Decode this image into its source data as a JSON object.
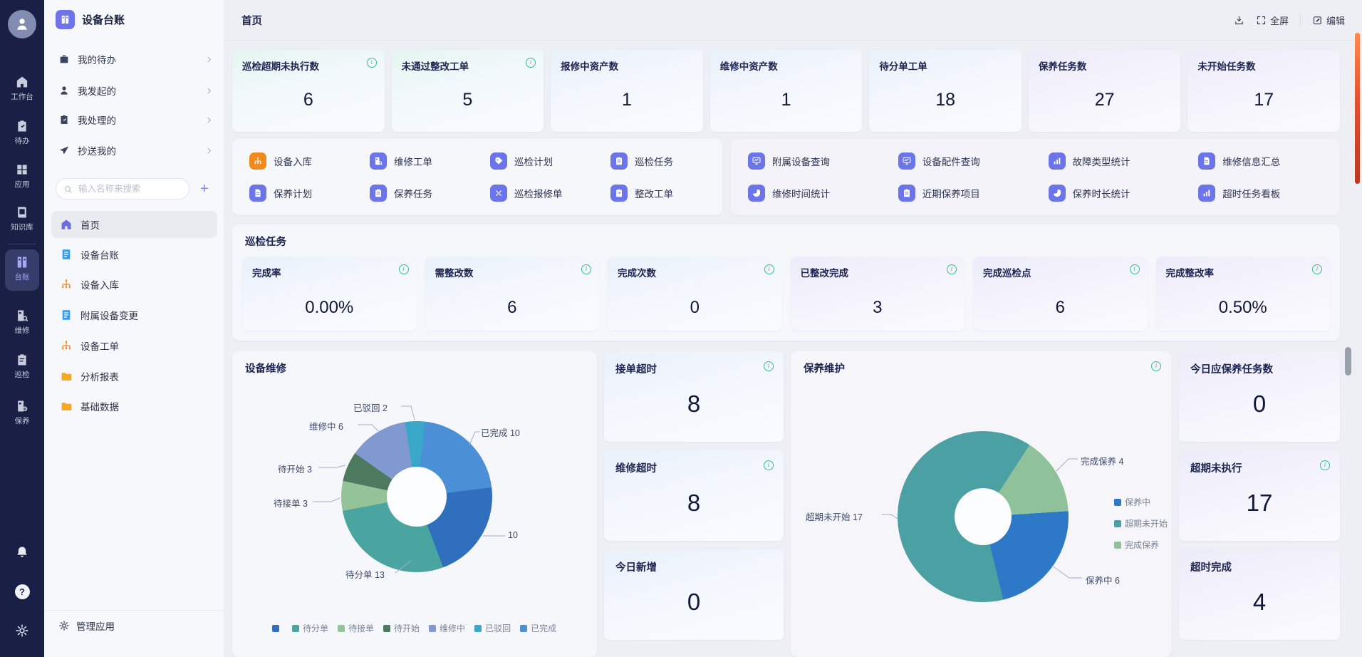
{
  "rail": {
    "items": [
      {
        "label": "工作台",
        "icon": "home-icon"
      },
      {
        "label": "待办",
        "icon": "todo-clipboard-icon"
      },
      {
        "label": "应用",
        "icon": "apps-grid-icon"
      },
      {
        "label": "知识库",
        "icon": "knowledge-book-icon"
      },
      {
        "label": "台账",
        "icon": "ledger-cabinet-icon"
      },
      {
        "label": "维修",
        "icon": "repair-cabinet-icon"
      },
      {
        "label": "巡检",
        "icon": "patrol-clipboard-icon"
      },
      {
        "label": "保养",
        "icon": "maintain-cabinet-icon"
      }
    ]
  },
  "sidebar": {
    "app_title": "设备台账",
    "quick_links": [
      {
        "label": "我的待办",
        "icon": "briefcase-icon"
      },
      {
        "label": "我发起的",
        "icon": "person-icon"
      },
      {
        "label": "我处理的",
        "icon": "clipboard-check-icon"
      },
      {
        "label": "抄送我的",
        "icon": "paper-plane-icon"
      }
    ],
    "search_placeholder": "输入名称来搜索",
    "add_label": "+",
    "menu": [
      {
        "label": "首页",
        "icon": "home-icon",
        "color": "#6a6fe2"
      },
      {
        "label": "设备台账",
        "icon": "document-lines-icon",
        "color": "#2e9cf3"
      },
      {
        "label": "设备入库",
        "icon": "org-chart-icon",
        "color": "#f08a1d"
      },
      {
        "label": "附属设备变更",
        "icon": "document-lines-icon",
        "color": "#2e9cf3"
      },
      {
        "label": "设备工单",
        "icon": "org-chart-icon",
        "color": "#f08a1d"
      },
      {
        "label": "分析报表",
        "icon": "folder-icon",
        "color": "#f6a81f"
      },
      {
        "label": "基础数据",
        "icon": "folder-icon",
        "color": "#f6a81f"
      }
    ],
    "manage_label": "管理应用"
  },
  "header": {
    "title": "首页",
    "fullscreen_label": "全屏",
    "edit_label": "编辑"
  },
  "stats_top": [
    {
      "label": "巡检超期未执行数",
      "value": "6"
    },
    {
      "label": "未通过整改工单",
      "value": "5"
    },
    {
      "label": "报修中资产数",
      "value": "1"
    },
    {
      "label": "维修中资产数",
      "value": "1"
    },
    {
      "label": "待分单工单",
      "value": "18"
    },
    {
      "label": "保养任务数",
      "value": "27"
    },
    {
      "label": "未开始任务数",
      "value": "17"
    }
  ],
  "shortcuts_left": [
    {
      "label": "设备入库",
      "icon": "org-chart-icon",
      "color": "#f08a1d"
    },
    {
      "label": "维修工单",
      "icon": "repair-cabinet-icon",
      "color": "#6c74e9"
    },
    {
      "label": "巡检计划",
      "icon": "tag-icon",
      "color": "#6c74e9"
    },
    {
      "label": "巡检任务",
      "icon": "clipboard-icon",
      "color": "#6c74e9"
    },
    {
      "label": "保养计划",
      "icon": "document-icon",
      "color": "#6c74e9"
    },
    {
      "label": "保养任务",
      "icon": "clipboard-icon",
      "color": "#6c74e9"
    },
    {
      "label": "巡检报修单",
      "icon": "tools-icon",
      "color": "#6c74e9"
    },
    {
      "label": "整改工单",
      "icon": "clipboard-check-icon",
      "color": "#6c74e9"
    }
  ],
  "shortcuts_right": [
    {
      "label": "附属设备查询",
      "icon": "monitor-chart-icon",
      "color": "#6c74e9"
    },
    {
      "label": "设备配件查询",
      "icon": "monitor-chart-icon",
      "color": "#6c74e9"
    },
    {
      "label": "故障类型统计",
      "icon": "bar-chart-icon",
      "color": "#6c74e9"
    },
    {
      "label": "维修信息汇总",
      "icon": "document-icon",
      "color": "#6c74e9"
    },
    {
      "label": "维修时间统计",
      "icon": "pie-chart-icon",
      "color": "#6c74e9"
    },
    {
      "label": "近期保养项目",
      "icon": "clipboard-icon",
      "color": "#6c74e9"
    },
    {
      "label": "保养时长统计",
      "icon": "pie-chart-icon",
      "color": "#6c74e9"
    },
    {
      "label": "超时任务看板",
      "icon": "bar-chart-icon",
      "color": "#6c74e9"
    }
  ],
  "inspection": {
    "title": "巡检任务",
    "cards": [
      {
        "label": "完成率",
        "value": "0.00%"
      },
      {
        "label": "需整改数",
        "value": "6"
      },
      {
        "label": "完成次数",
        "value": "0"
      },
      {
        "label": "已整改完成",
        "value": "3"
      },
      {
        "label": "完成巡检点",
        "value": "6"
      },
      {
        "label": "完成整改率",
        "value": "0.50%"
      }
    ]
  },
  "cards_mid": [
    {
      "label": "接单超时",
      "value": "8"
    },
    {
      "label": "维修超时",
      "value": "8"
    },
    {
      "label": "今日新增",
      "value": "0"
    }
  ],
  "cards_right": [
    {
      "label": "今日应保养任务数",
      "value": "0"
    },
    {
      "label": "超期未执行",
      "value": "17"
    },
    {
      "label": "超时完成",
      "value": "4"
    }
  ],
  "chart_data": [
    {
      "type": "pie",
      "title": "设备维修",
      "start_angle": -9,
      "total": 47,
      "slices": [
        {
          "label": "已驳回",
          "value": 2,
          "color": "#38a7c8"
        },
        {
          "label": "已完成",
          "value": 10,
          "color": "#4b90d6"
        },
        {
          "label": "",
          "value": 10,
          "color": "#2f6fbe"
        },
        {
          "label": "待分单",
          "value": 13,
          "color": "#4aa4a0"
        },
        {
          "label": "待接单",
          "value": 3,
          "color": "#95c398"
        },
        {
          "label": "待开始",
          "value": 3,
          "color": "#4d7a5e"
        },
        {
          "label": "维修中",
          "value": 6,
          "color": "#8099d1"
        }
      ],
      "legend": [
        {
          "label": "",
          "color": "#2f6fbe"
        },
        {
          "label": "待分单",
          "color": "#4aa4a0"
        },
        {
          "label": "待接单",
          "color": "#95c398"
        },
        {
          "label": "待开始",
          "color": "#4d7a5e"
        },
        {
          "label": "维修中",
          "color": "#8099d1"
        },
        {
          "label": "已驳回",
          "color": "#38a7c8"
        },
        {
          "label": "已完成",
          "color": "#4b90d6"
        }
      ],
      "legend_position": "bottom"
    },
    {
      "type": "pie",
      "title": "保养维护",
      "start_angle": 33,
      "total": 27,
      "slices": [
        {
          "label": "完成保养",
          "value": 4,
          "color": "#8fc29b"
        },
        {
          "label": "保养中",
          "value": 6,
          "color": "#2e79c7"
        },
        {
          "label": "超期未开始",
          "value": 17,
          "color": "#4aa0a2"
        }
      ],
      "legend": [
        {
          "label": "保养中",
          "color": "#2e79c7"
        },
        {
          "label": "超期未开始",
          "color": "#4aa0a2"
        },
        {
          "label": "完成保养",
          "color": "#8fc29b"
        }
      ],
      "legend_position": "right"
    }
  ]
}
